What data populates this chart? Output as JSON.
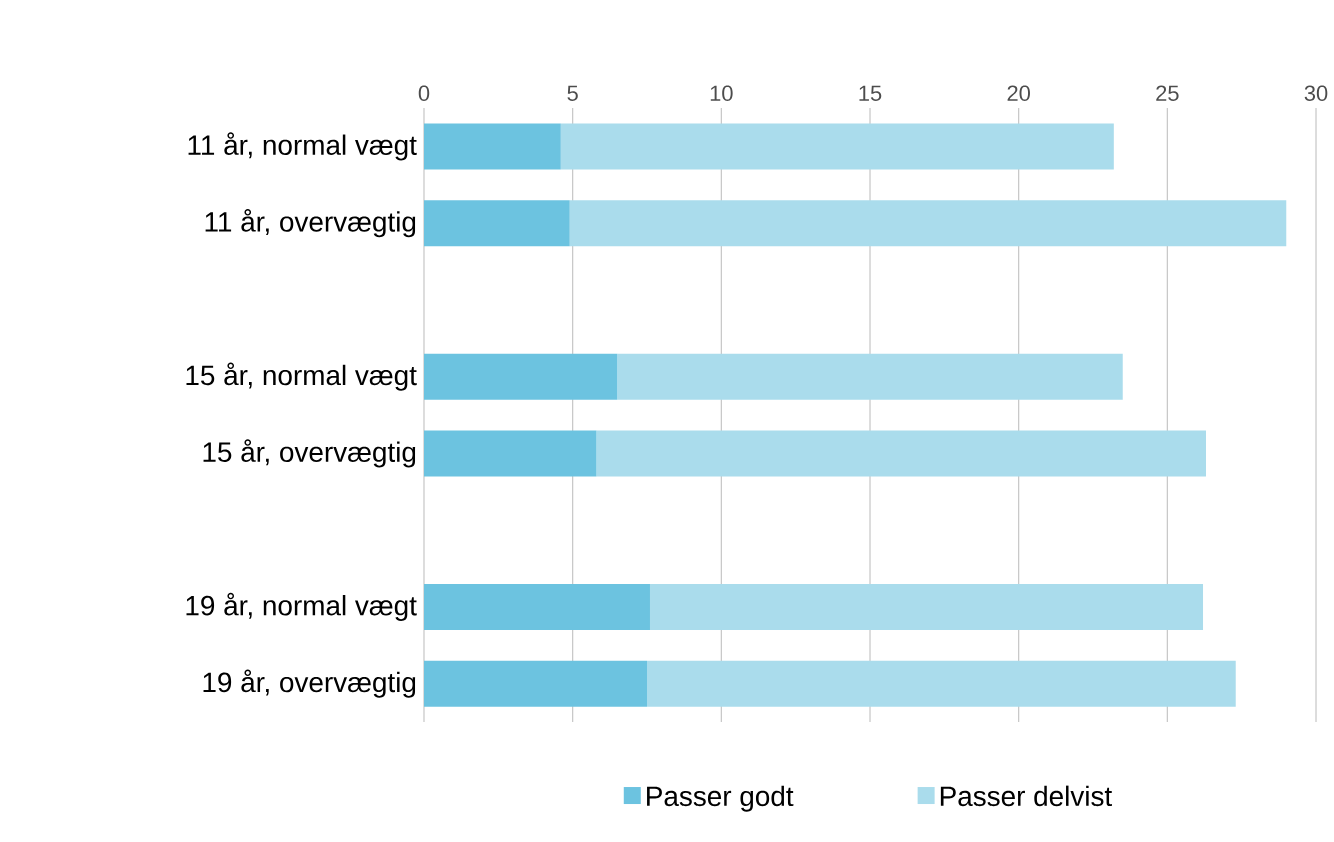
{
  "chart_data": {
    "type": "bar",
    "orientation": "horizontal",
    "stacked": true,
    "categories": [
      "11 år, normal vægt",
      "11 år, overvægtig",
      null,
      "15 år, normal vægt",
      "15 år, overvægtig",
      null,
      "19 år, normal vægt",
      "19 år, overvægtig"
    ],
    "series": [
      {
        "name": "Passer godt",
        "color": "#6cc3e0",
        "values": [
          4.6,
          4.9,
          null,
          6.5,
          5.8,
          null,
          7.6,
          7.5
        ]
      },
      {
        "name": "Passer delvist",
        "color": "#aadcec",
        "values": [
          18.6,
          24.1,
          null,
          17.0,
          20.5,
          null,
          18.6,
          19.8
        ]
      }
    ],
    "xlim": [
      0,
      30
    ],
    "xticks": [
      0,
      5,
      10,
      15,
      20,
      25,
      30
    ],
    "grid": "x",
    "legend": "bottom"
  }
}
